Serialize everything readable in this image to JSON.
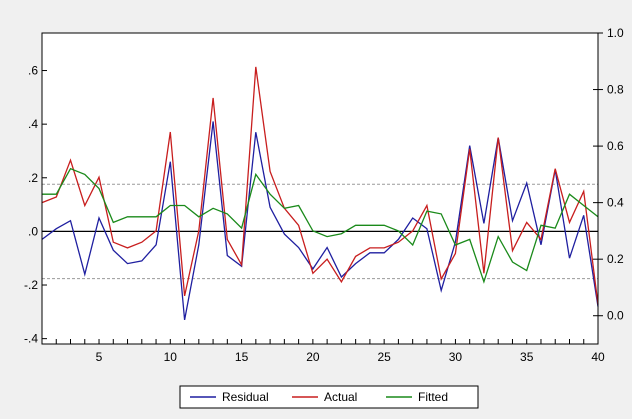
{
  "chart_data": {
    "type": "line",
    "x": [
      1,
      2,
      3,
      4,
      5,
      6,
      7,
      8,
      9,
      10,
      11,
      12,
      13,
      14,
      15,
      16,
      17,
      18,
      19,
      20,
      21,
      22,
      23,
      24,
      25,
      26,
      27,
      28,
      29,
      30,
      31,
      32,
      33,
      34,
      35,
      36,
      37,
      38,
      39,
      40
    ],
    "x_ticks": [
      "5",
      "10",
      "15",
      "20",
      "25",
      "30",
      "35",
      "40"
    ],
    "xlim": [
      1,
      40
    ],
    "left_axis": {
      "ylim": [
        -0.42,
        0.74
      ],
      "ticks": [
        {
          "value": 0.6,
          "label": ".6"
        },
        {
          "value": 0.4,
          "label": ".4"
        },
        {
          "value": 0.2,
          "label": ".2"
        },
        {
          "value": 0.0,
          "label": ".0"
        },
        {
          "value": -0.2,
          "label": "-.2"
        },
        {
          "value": -0.4,
          "label": "-.4"
        }
      ]
    },
    "right_axis": {
      "ylim": [
        -0.1,
        1.0
      ],
      "ticks": [
        {
          "value": 1.0,
          "label": "1.0"
        },
        {
          "value": 0.8,
          "label": "0.8"
        },
        {
          "value": 0.6,
          "label": "0.6"
        },
        {
          "value": 0.4,
          "label": "0.4"
        },
        {
          "value": 0.2,
          "label": "0.2"
        },
        {
          "value": 0.0,
          "label": "0.0"
        }
      ]
    },
    "residual_bands": [
      0.176,
      -0.176
    ],
    "series": [
      {
        "name": "Residual",
        "axis": "left",
        "color": "#1f1fa0",
        "values": [
          -0.03,
          0.01,
          0.04,
          -0.16,
          0.05,
          -0.07,
          -0.12,
          -0.11,
          -0.05,
          0.26,
          -0.33,
          -0.05,
          0.41,
          -0.09,
          -0.13,
          0.37,
          0.09,
          -0.01,
          -0.06,
          -0.14,
          -0.06,
          -0.17,
          -0.12,
          -0.08,
          -0.08,
          -0.03,
          0.05,
          0.01,
          -0.22,
          -0.04,
          0.32,
          0.03,
          0.35,
          0.04,
          0.18,
          -0.05,
          0.23,
          -0.1,
          0.06,
          -0.28
        ]
      },
      {
        "name": "Actual",
        "axis": "right",
        "color": "#c81e1e",
        "values": [
          0.4,
          0.42,
          0.55,
          0.39,
          0.49,
          0.26,
          0.24,
          0.26,
          0.3,
          0.65,
          0.07,
          0.3,
          0.77,
          0.27,
          0.18,
          0.88,
          0.51,
          0.38,
          0.32,
          0.15,
          0.2,
          0.12,
          0.21,
          0.24,
          0.24,
          0.26,
          0.3,
          0.39,
          0.13,
          0.22,
          0.59,
          0.15,
          0.63,
          0.23,
          0.33,
          0.27,
          0.52,
          0.33,
          0.44,
          0.04
        ]
      },
      {
        "name": "Fitted",
        "axis": "right",
        "color": "#1a8a1a",
        "values": [
          0.43,
          0.43,
          0.52,
          0.5,
          0.45,
          0.33,
          0.35,
          0.35,
          0.35,
          0.39,
          0.39,
          0.35,
          0.38,
          0.36,
          0.31,
          0.5,
          0.43,
          0.38,
          0.39,
          0.3,
          0.28,
          0.29,
          0.32,
          0.32,
          0.32,
          0.3,
          0.25,
          0.37,
          0.36,
          0.25,
          0.27,
          0.12,
          0.28,
          0.19,
          0.16,
          0.32,
          0.31,
          0.43,
          0.39,
          0.35
        ]
      }
    ],
    "grid": false,
    "legend_position": "bottom-center"
  }
}
